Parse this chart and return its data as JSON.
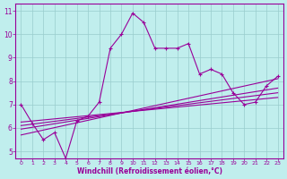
{
  "xlabel": "Windchill (Refroidissement éolien,°C)",
  "bg_color": "#c0eeed",
  "line_color": "#990099",
  "grid_color": "#99cccc",
  "xlim": [
    -0.5,
    23.5
  ],
  "ylim": [
    4.7,
    11.3
  ],
  "xticks": [
    0,
    1,
    2,
    3,
    4,
    5,
    6,
    7,
    8,
    9,
    10,
    11,
    12,
    13,
    14,
    15,
    16,
    17,
    18,
    19,
    20,
    21,
    22,
    23
  ],
  "yticks": [
    5,
    6,
    7,
    8,
    9,
    10,
    11
  ],
  "main_line_x": [
    0,
    1,
    2,
    3,
    4,
    5,
    6,
    7,
    8,
    9,
    10,
    11,
    12,
    13,
    14,
    15,
    16,
    17,
    18,
    19,
    20,
    21,
    22,
    23
  ],
  "main_line_y": [
    7.0,
    6.2,
    5.5,
    5.8,
    4.7,
    6.3,
    6.5,
    7.1,
    9.4,
    10.0,
    10.9,
    10.5,
    9.4,
    9.4,
    9.4,
    9.6,
    8.3,
    8.5,
    8.3,
    7.5,
    7.0,
    7.1,
    7.8,
    8.2
  ],
  "reg_lines": [
    {
      "x": [
        0,
        23
      ],
      "y": [
        5.7,
        8.1
      ]
    },
    {
      "x": [
        0,
        23
      ],
      "y": [
        5.95,
        7.7
      ]
    },
    {
      "x": [
        0,
        23
      ],
      "y": [
        6.1,
        7.5
      ]
    },
    {
      "x": [
        0,
        23
      ],
      "y": [
        6.25,
        7.3
      ]
    }
  ]
}
